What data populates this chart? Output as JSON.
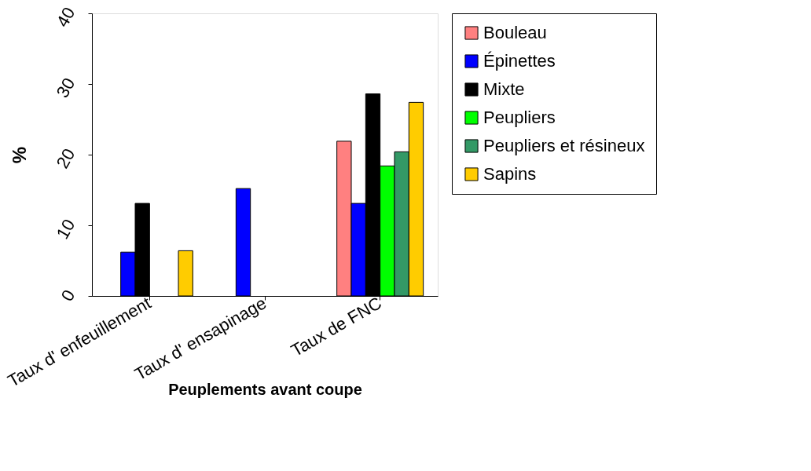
{
  "chart_data": {
    "type": "bar",
    "xlabel": "Peuplements avant coupe",
    "ylabel": "%",
    "categories": [
      "Taux d' enfeuillement",
      "Taux d' ensapinage",
      "Taux de FNC"
    ],
    "series": [
      {
        "name": "Bouleau",
        "color": "#ff8080",
        "values": [
          null,
          null,
          21.9
        ]
      },
      {
        "name": "Épinettes",
        "color": "#0000ff",
        "values": [
          6.2,
          15.2,
          13.1
        ]
      },
      {
        "name": "Mixte",
        "color": "#000000",
        "values": [
          13.1,
          null,
          28.6
        ]
      },
      {
        "name": "Peupliers",
        "color": "#00ff00",
        "values": [
          null,
          null,
          18.4
        ]
      },
      {
        "name": "Peupliers et résineux",
        "color": "#339966",
        "values": [
          null,
          null,
          20.4
        ]
      },
      {
        "name": "Sapins",
        "color": "#ffcc00",
        "values": [
          6.4,
          null,
          27.4
        ]
      }
    ],
    "ylim": [
      0,
      40
    ],
    "yticks": [
      0,
      10,
      20,
      30,
      40
    ],
    "grid": false,
    "legend": "right"
  }
}
